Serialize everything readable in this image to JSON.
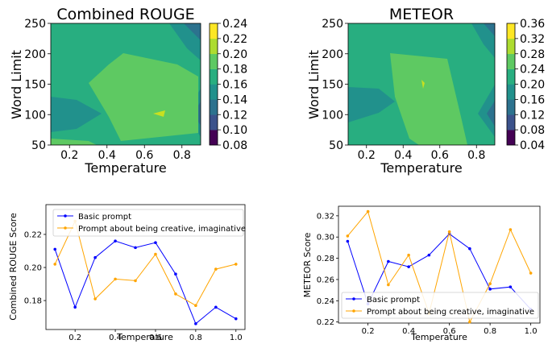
{
  "colors": {
    "contour_levels": [
      "#440154",
      "#3b528b",
      "#2c728e",
      "#21918c",
      "#28ae80",
      "#5ec962",
      "#addc30",
      "#fde725"
    ],
    "basic": "#0000ff",
    "creative": "#ffa500"
  },
  "chart_data": [
    {
      "type": "heatmap",
      "title": "Combined ROUGE",
      "xlabel": "Temperature",
      "ylabel": "Word Limit",
      "xticks": [
        "0.2",
        "0.4",
        "0.6",
        "0.8"
      ],
      "yticks": [
        "50",
        "100",
        "150",
        "200",
        "250"
      ],
      "xlim": [
        0.1,
        0.9
      ],
      "ylim": [
        50,
        250
      ],
      "colorbar_ticks": [
        "0.08",
        "0.10",
        "0.12",
        "0.14",
        "0.16",
        "0.18",
        "0.20",
        "0.22",
        "0.24"
      ],
      "colorbar_range": [
        0.08,
        0.24
      ]
    },
    {
      "type": "heatmap",
      "title": "METEOR",
      "xlabel": "Temperature",
      "ylabel": "Word Limit",
      "xticks": [
        "0.2",
        "0.4",
        "0.6",
        "0.8"
      ],
      "yticks": [
        "50",
        "100",
        "150",
        "200",
        "250"
      ],
      "xlim": [
        0.1,
        0.9
      ],
      "ylim": [
        50,
        250
      ],
      "colorbar_ticks": [
        "0.04",
        "0.08",
        "0.12",
        "0.16",
        "0.20",
        "0.24",
        "0.28",
        "0.32",
        "0.36"
      ],
      "colorbar_range": [
        0.04,
        0.36
      ]
    },
    {
      "type": "line",
      "xlabel": "Temperature",
      "ylabel": "Combined ROUGE Score",
      "x": [
        0.1,
        0.2,
        0.3,
        0.4,
        0.5,
        0.6,
        0.7,
        0.8,
        0.9,
        1.0
      ],
      "xticks": [
        "0.2",
        "0.4",
        "0.6",
        "0.8",
        "1.0"
      ],
      "yticks": [
        "0.18",
        "0.20",
        "0.22"
      ],
      "xlim": [
        0.055,
        1.045
      ],
      "ylim": [
        0.1625,
        0.238
      ],
      "legend": "top-left",
      "series": [
        {
          "name": "Basic prompt",
          "values": [
            0.211,
            0.176,
            0.206,
            0.216,
            0.212,
            0.215,
            0.196,
            0.166,
            0.176,
            0.169
          ]
        },
        {
          "name": "Prompt about being creative, imaginative",
          "values": [
            0.202,
            0.228,
            0.181,
            0.193,
            0.192,
            0.208,
            0.184,
            0.177,
            0.199,
            0.202
          ]
        }
      ]
    },
    {
      "type": "line",
      "xlabel": "Temperature",
      "ylabel": "METEOR Score",
      "x": [
        0.1,
        0.2,
        0.3,
        0.4,
        0.5,
        0.6,
        0.7,
        0.8,
        0.9,
        1.0
      ],
      "xticks": [
        "0.2",
        "0.4",
        "0.6",
        "0.8",
        "1.0"
      ],
      "yticks": [
        "0.22",
        "0.24",
        "0.26",
        "0.28",
        "0.30",
        "0.32"
      ],
      "xlim": [
        0.055,
        1.045
      ],
      "ylim": [
        0.219,
        0.329
      ],
      "legend": "bottom-left",
      "series": [
        {
          "name": "Basic prompt",
          "values": [
            0.296,
            0.237,
            0.277,
            0.272,
            0.283,
            0.303,
            0.289,
            0.251,
            0.253,
            0.232
          ]
        },
        {
          "name": "Prompt about being creative, imaginative",
          "values": [
            0.301,
            0.324,
            0.255,
            0.283,
            0.228,
            0.305,
            0.22,
            0.256,
            0.307,
            0.266
          ]
        }
      ]
    }
  ]
}
